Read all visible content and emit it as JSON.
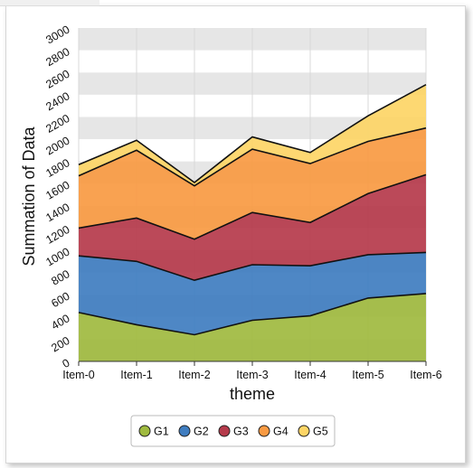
{
  "chart_data": {
    "type": "area",
    "stacked": true,
    "xlabel": "theme",
    "ylabel": "Summation of Data",
    "categories": [
      "Item-0",
      "Item-1",
      "Item-2",
      "Item-3",
      "Item-4",
      "Item-5",
      "Item-6"
    ],
    "ylim": [
      0,
      3000
    ],
    "yticks": [
      0,
      200,
      400,
      600,
      800,
      1000,
      1200,
      1400,
      1600,
      1800,
      2000,
      2200,
      2400,
      2600,
      2800,
      3000
    ],
    "grid": "alternating horizontal bands",
    "legend_position": "bottom",
    "series": [
      {
        "name": "G1",
        "color": "#9fba3f",
        "values": [
          440,
          330,
          240,
          370,
          410,
          570,
          610
        ]
      },
      {
        "name": "G2",
        "color": "#3f7dc0",
        "values": [
          510,
          570,
          490,
          500,
          450,
          390,
          370
        ]
      },
      {
        "name": "G3",
        "color": "#b53a4b",
        "values": [
          250,
          390,
          370,
          470,
          390,
          550,
          700
        ]
      },
      {
        "name": "G4",
        "color": "#f99a42",
        "values": [
          470,
          610,
          480,
          570,
          530,
          470,
          420
        ]
      },
      {
        "name": "G5",
        "color": "#fdd566",
        "values": [
          100,
          90,
          30,
          110,
          100,
          230,
          390
        ]
      }
    ]
  }
}
